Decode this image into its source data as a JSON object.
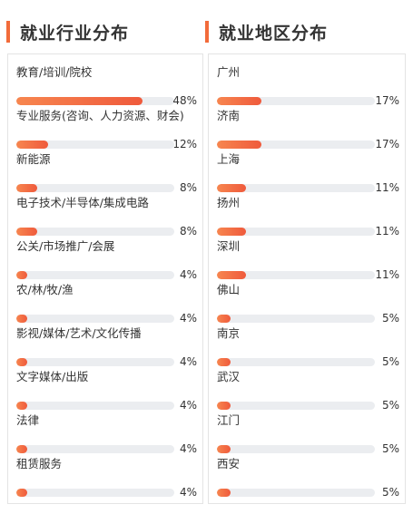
{
  "industry": {
    "title": "就业行业分布",
    "items": [
      {
        "label": "教育/培训/院校",
        "percent_text": "48%",
        "value": 48
      },
      {
        "label": "专业服务(咨询、人力资源、财会)",
        "percent_text": "12%",
        "value": 12
      },
      {
        "label": "新能源",
        "percent_text": "8%",
        "value": 8
      },
      {
        "label": "电子技术/半导体/集成电路",
        "percent_text": "8%",
        "value": 8
      },
      {
        "label": "公关/市场推广/会展",
        "percent_text": "4%",
        "value": 4
      },
      {
        "label": "农/林/牧/渔",
        "percent_text": "4%",
        "value": 4
      },
      {
        "label": "影视/媒体/艺术/文化传播",
        "percent_text": "4%",
        "value": 4
      },
      {
        "label": "文字媒体/出版",
        "percent_text": "4%",
        "value": 4
      },
      {
        "label": "法律",
        "percent_text": "4%",
        "value": 4
      },
      {
        "label": "租赁服务",
        "percent_text": "4%",
        "value": 4
      }
    ]
  },
  "region": {
    "title": "就业地区分布",
    "items": [
      {
        "label": "广州",
        "percent_text": "17%",
        "value": 17
      },
      {
        "label": "济南",
        "percent_text": "17%",
        "value": 17
      },
      {
        "label": "上海",
        "percent_text": "11%",
        "value": 11
      },
      {
        "label": "扬州",
        "percent_text": "11%",
        "value": 11
      },
      {
        "label": "深圳",
        "percent_text": "11%",
        "value": 11
      },
      {
        "label": "佛山",
        "percent_text": "5%",
        "value": 5
      },
      {
        "label": "南京",
        "percent_text": "5%",
        "value": 5
      },
      {
        "label": "武汉",
        "percent_text": "5%",
        "value": 5
      },
      {
        "label": "江门",
        "percent_text": "5%",
        "value": 5
      },
      {
        "label": "西安",
        "percent_text": "5%",
        "value": 5
      }
    ]
  },
  "colors": {
    "accent": "#f26b3a",
    "bar_start": "#f7864f",
    "bar_end": "#ef5a3c",
    "track": "#ebedf0"
  }
}
